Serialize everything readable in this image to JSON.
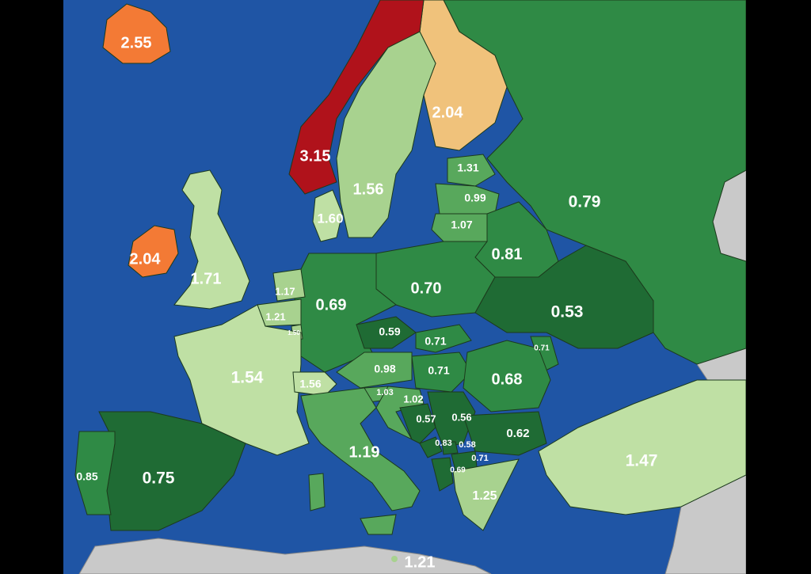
{
  "colors": {
    "sea": "#1f55a5",
    "dark_green": "#1f6b34",
    "green": "#2f8a45",
    "mid_green": "#58a85c",
    "light_green": "#a8d28f",
    "very_light_green": "#bfe0a4",
    "tan": "#f0c27b",
    "orange": "#f37a35",
    "red": "#b0121b",
    "grey_land": "#c9c9c9"
  },
  "labels": {
    "iceland": "2.55",
    "norway": "3.15",
    "finland": "2.04",
    "sweden": "1.56",
    "denmark": "1.60",
    "ireland": "2.04",
    "uk": "1.71",
    "estonia": "1.31",
    "latvia": "0.99",
    "lithuania": "1.07",
    "russia": "0.79",
    "belarus": "0.81",
    "poland": "0.70",
    "ukraine": "0.53",
    "germany": "0.69",
    "netherlands": "1.17",
    "belgium": "1.21",
    "luxembourg": "1.50",
    "czechia": "0.59",
    "slovakia": "0.71",
    "moldova": "0.71",
    "hungary": "0.71",
    "romania": "0.68",
    "austria": "0.98",
    "slovenia": "1.03",
    "croatia": "1.02",
    "bosnia": "0.57",
    "serbia": "0.56",
    "montenegro": "0.83",
    "kosovo": "0.58",
    "north_macedonia": "0.71",
    "albania": "0.69",
    "bulgaria": "0.62",
    "greece": "1.25",
    "turkey": "1.47",
    "france": "1.54",
    "switzerland": "1.56",
    "italy": "1.19",
    "spain": "0.75",
    "portugal": "0.85",
    "malta": "1.21"
  }
}
